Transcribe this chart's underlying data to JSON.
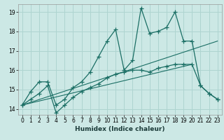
{
  "xlabel": "Humidex (Indice chaleur)",
  "xlim": [
    -0.5,
    23.5
  ],
  "ylim": [
    13.7,
    19.4
  ],
  "yticks": [
    14,
    15,
    16,
    17,
    18,
    19
  ],
  "xticks": [
    0,
    1,
    2,
    3,
    4,
    5,
    6,
    7,
    8,
    9,
    10,
    11,
    12,
    13,
    14,
    15,
    16,
    17,
    18,
    19,
    20,
    21,
    22,
    23
  ],
  "bg_color": "#cce8e5",
  "grid_color": "#aed4d0",
  "line_color": "#1a6e64",
  "series1_x": [
    0,
    1,
    2,
    3,
    4,
    5,
    6,
    7,
    8,
    9,
    10,
    11,
    12,
    13,
    14,
    15,
    16,
    17,
    18,
    19,
    20,
    21,
    22,
    23
  ],
  "series1_y": [
    14.2,
    14.9,
    15.4,
    15.4,
    14.2,
    14.5,
    15.1,
    15.4,
    15.9,
    16.7,
    17.5,
    18.1,
    16.0,
    16.5,
    19.2,
    17.9,
    18.0,
    18.2,
    19.0,
    17.5,
    17.5,
    15.2,
    14.8,
    14.5
  ],
  "series2_x": [
    0,
    1,
    2,
    3,
    4,
    5,
    6,
    7,
    8,
    9,
    10,
    11,
    12,
    13,
    14,
    15,
    16,
    17,
    18,
    19,
    20,
    21,
    22,
    23
  ],
  "series2_y": [
    14.2,
    14.5,
    14.8,
    15.2,
    13.8,
    14.2,
    14.6,
    14.9,
    15.1,
    15.3,
    15.6,
    15.8,
    15.9,
    16.0,
    16.0,
    15.9,
    16.1,
    16.2,
    16.3,
    16.3,
    16.3,
    15.2,
    14.8,
    14.5
  ],
  "series3_x": [
    0,
    23
  ],
  "series3_y": [
    14.2,
    17.5
  ],
  "series4_x": [
    0,
    20
  ],
  "series4_y": [
    14.2,
    16.3
  ]
}
